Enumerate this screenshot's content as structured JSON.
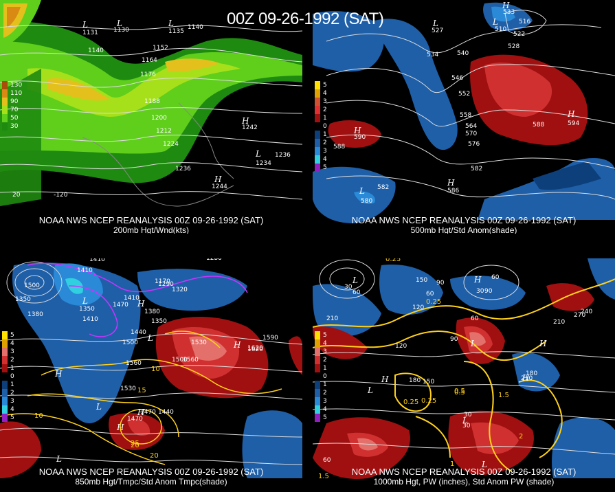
{
  "title": "00Z 09-26-1992 (SAT)",
  "panels": [
    {
      "caption_line1": "NOAA NWS NCEP REANALYSIS 00Z 09-26-1992 (SAT)",
      "caption_line2": "200mb Hgt/Wnd(kts)",
      "legend": [
        {
          "label": "130",
          "color": "#a84e0a"
        },
        {
          "label": "110",
          "color": "#d98a14"
        },
        {
          "label": "90",
          "color": "#e3c01c"
        },
        {
          "label": "70",
          "color": "#a6e01a"
        },
        {
          "label": "50",
          "color": "#5fcf1c"
        },
        {
          "label": "30",
          "color": "#1f8a10"
        }
      ],
      "contour_labels": [
        "1131",
        "1130",
        "1135",
        "1140",
        "1140",
        "1152",
        "1164",
        "1176",
        "1188",
        "1200",
        "1212",
        "1224",
        "1236",
        "1236",
        "1242",
        "1234",
        "1244"
      ],
      "hl_labels": [
        "L",
        "L",
        "L",
        "H",
        "L",
        "H"
      ],
      "lon_labels": [
        "-120",
        "20"
      ]
    },
    {
      "caption_line1": "NOAA NWS NCEP REANALYSIS 00Z 09-26-1992 (SAT)",
      "caption_line2": "500mb Hgt/Std Anom(shade)",
      "legend": [
        {
          "label": "5",
          "color": "#ffe000"
        },
        {
          "label": "4",
          "color": "#e0a000"
        },
        {
          "label": "3",
          "color": "#d05030"
        },
        {
          "label": "2",
          "color": "#e03030"
        },
        {
          "label": "1",
          "color": "#a01010"
        },
        {
          "label": "0",
          "color": "#000000"
        },
        {
          "label": "1",
          "color": "#0d3f7a"
        },
        {
          "label": "2",
          "color": "#1e5fa8"
        },
        {
          "label": "3",
          "color": "#2a8ad8"
        },
        {
          "label": "4",
          "color": "#30d0e0"
        },
        {
          "label": "5",
          "color": "#9020c0"
        }
      ],
      "contour_labels": [
        "533",
        "527",
        "510",
        "516",
        "522",
        "528",
        "534",
        "540",
        "546",
        "552",
        "558",
        "564",
        "570",
        "576",
        "582",
        "588",
        "588",
        "594",
        "590",
        "580",
        "582",
        "586"
      ],
      "hl_labels": [
        "H",
        "L",
        "L",
        "H",
        "H",
        "L",
        "H"
      ]
    },
    {
      "caption_line1": "NOAA NWS NCEP REANALYSIS 00Z 09-26-1992 (SAT)",
      "caption_line2": "850mb Hgt/Tmpc/Std Anom Tmpc(shade)",
      "legend": [
        {
          "label": "5",
          "color": "#ffe000"
        },
        {
          "label": "4",
          "color": "#e0a000"
        },
        {
          "label": "3",
          "color": "#e3706a"
        },
        {
          "label": "2",
          "color": "#d03030"
        },
        {
          "label": "1",
          "color": "#a01010"
        },
        {
          "label": "0",
          "color": "#000000"
        },
        {
          "label": "1",
          "color": "#0d3f7a"
        },
        {
          "label": "2",
          "color": "#1e5fa8"
        },
        {
          "label": "3",
          "color": "#2a8ad8"
        },
        {
          "label": "4",
          "color": "#30d0e0"
        },
        {
          "label": "5",
          "color": "#9020c0"
        }
      ],
      "contour_labels": [
        "1410",
        "1410",
        "1500",
        "1350",
        "1380",
        "1350",
        "1410",
        "1470",
        "1410",
        "1380",
        "1350",
        "1440",
        "1500",
        "1560",
        "1530",
        "1440",
        "1470",
        "1470",
        "1530",
        "1560",
        "1620",
        "1590",
        "1500",
        "1620",
        "1200",
        "1230",
        "1170",
        "1290",
        "1320"
      ],
      "temp_labels": [
        "10",
        "15",
        "20",
        "25",
        "20",
        "10"
      ],
      "hl_labels": [
        "L",
        "H",
        "L",
        "H",
        "H",
        "H",
        "H",
        "L",
        "L"
      ]
    },
    {
      "caption_line1": "NOAA NWS NCEP REANALYSIS 00Z 09-26-1992 (SAT)",
      "caption_line2": "1000mb Hgt, PW (inches), Std Anom PW (shade)",
      "legend": [
        {
          "label": "5",
          "color": "#ffe000"
        },
        {
          "label": "4",
          "color": "#e0a000"
        },
        {
          "label": "3",
          "color": "#e3706a"
        },
        {
          "label": "2",
          "color": "#d03030"
        },
        {
          "label": "1",
          "color": "#a01010"
        },
        {
          "label": "0",
          "color": "#000000"
        },
        {
          "label": "1",
          "color": "#0d3f7a"
        },
        {
          "label": "2",
          "color": "#1e5fa8"
        },
        {
          "label": "3",
          "color": "#2a8ad8"
        },
        {
          "label": "4",
          "color": "#30d0e0"
        },
        {
          "label": "5",
          "color": "#9020c0"
        }
      ],
      "contour_labels": [
        "60",
        "30",
        "150",
        "120",
        "90",
        "60",
        "30",
        "90",
        "210",
        "120",
        "180",
        "150",
        "90",
        "60",
        "30",
        "180",
        "210",
        "270",
        "240",
        "210",
        "60",
        "30",
        "60"
      ],
      "pw_labels": [
        "0.25",
        "0.25",
        "0.25",
        "0.25",
        "0.5",
        "0.5",
        "1",
        "1.5",
        "2",
        "1.5"
      ],
      "hl_labels": [
        "L",
        "H",
        "L",
        "H",
        "H",
        "L",
        "L",
        "H",
        "L"
      ]
    }
  ]
}
